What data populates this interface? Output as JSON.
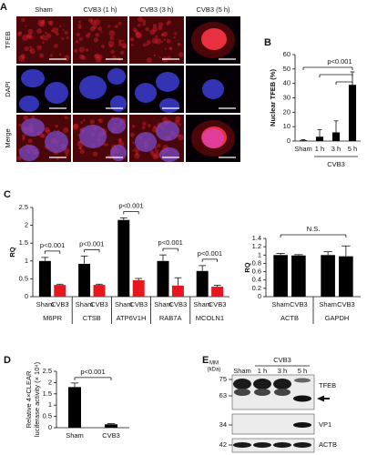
{
  "panel_a": {
    "label": "A",
    "columns": [
      "Sham",
      "CVB3 (1 h)",
      "CVB3 (3 h)",
      "CVB3 (5 h)"
    ],
    "rows": [
      "TFEB",
      "DAPI",
      "Merge"
    ]
  },
  "chart_data": [
    {
      "type": "bar",
      "panel": "B",
      "y_label": "Nuclear TFEB (%)",
      "categories": [
        "Sham",
        "1 h",
        "3 h",
        "5 h"
      ],
      "group_label": "CVB3",
      "values": [
        0.5,
        3,
        6,
        39
      ],
      "errors": [
        0.5,
        5,
        8,
        9
      ],
      "color": "#000000",
      "ylim": [
        0,
        60
      ],
      "yticks": [
        0,
        10,
        20,
        30,
        40,
        50,
        60
      ],
      "annotations": [
        "p<0.001"
      ]
    },
    {
      "type": "bar",
      "panel": "C",
      "y_label": "RQ",
      "categories": [
        "M6PR",
        "CTSB",
        "ATP6V1H",
        "RAB7A",
        "MCOLN1"
      ],
      "series": [
        {
          "name": "Sham",
          "color": "#000000",
          "values": [
            1.0,
            0.92,
            2.15,
            1.0,
            0.72
          ],
          "errors": [
            0.1,
            0.22,
            0.06,
            0.17,
            0.15
          ]
        },
        {
          "name": "CVB3",
          "color": "#e8171d",
          "values": [
            0.33,
            0.33,
            0.46,
            0.31,
            0.28
          ],
          "errors": [
            0.02,
            0.02,
            0.05,
            0.22,
            0.04
          ]
        }
      ],
      "ylim": [
        0,
        2.5
      ],
      "yticks": [
        0,
        0.5,
        1,
        1.5,
        2,
        2.5
      ],
      "annotations": [
        "p<0.001",
        "p<0.001",
        "p<0.001",
        "p<0.001",
        "p<0.001"
      ]
    },
    {
      "type": "bar",
      "y_label": "RQ",
      "categories": [
        "ACTB",
        "GAPDH"
      ],
      "series": [
        {
          "name": "Sham",
          "color": "#000000",
          "values": [
            1.0,
            1.0
          ],
          "errors": [
            0.04,
            0.08
          ]
        },
        {
          "name": "CVB3",
          "color": "#000000",
          "values": [
            0.99,
            0.97
          ],
          "errors": [
            0.02,
            0.25
          ]
        }
      ],
      "ylim": [
        0,
        1.4
      ],
      "yticks": [
        0,
        0.2,
        0.4,
        0.6,
        0.8,
        1,
        1.2,
        1.4
      ],
      "annotations": [
        "N.S."
      ]
    },
    {
      "type": "bar",
      "panel": "D",
      "y_label": [
        "Relative 4×CLEAR",
        "luciferase activity (× 10⁴)"
      ],
      "categories": [
        "Sham",
        "CVB3"
      ],
      "values": [
        1.8,
        0.15
      ],
      "errors": [
        0.18,
        0.03
      ],
      "color": "#000000",
      "ylim": [
        0,
        2.5
      ],
      "yticks": [
        0,
        0.5,
        1,
        1.5,
        2,
        2.5
      ],
      "annotations": [
        "p<0.001"
      ]
    }
  ],
  "panel_e": {
    "label": "E",
    "mm_label": [
      "MM",
      "(kDa)"
    ],
    "group_label": "CVB3",
    "lanes": [
      "Sham",
      "1 h",
      "3 h",
      "5 h"
    ],
    "markers": [
      "75",
      "63",
      "34",
      "42"
    ],
    "rows": [
      "TFEB",
      "VP1",
      "ACTB"
    ]
  }
}
